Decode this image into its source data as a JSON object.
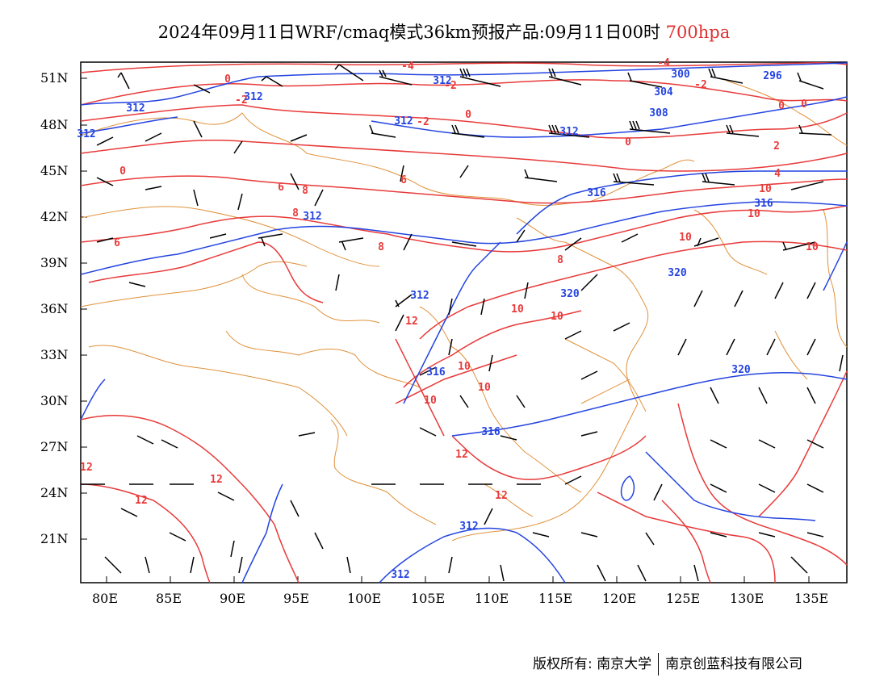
{
  "title": {
    "main": "2024年09月11日WRF/cmaq模式36km预报产品:09月11日00时",
    "level": "700hpa"
  },
  "axes": {
    "lat_labels": [
      "51N",
      "48N",
      "45N",
      "42N",
      "39N",
      "36N",
      "33N",
      "30N",
      "27N",
      "24N",
      "21N"
    ],
    "lon_labels": [
      "80E",
      "85E",
      "90E",
      "95E",
      "100E",
      "105E",
      "110E",
      "115E",
      "120E",
      "125E",
      "130E",
      "135E"
    ]
  },
  "colors": {
    "temperature": "#e83a3a",
    "geopotential": "#2444e0",
    "boundary": "#e0913a",
    "wind": "#000000"
  },
  "contour_labels": {
    "temperature": [
      "-4",
      "-4",
      "-2",
      "-2",
      "-2",
      "-2",
      "0",
      "0",
      "0",
      "0",
      "0",
      "0",
      "2",
      "4",
      "6",
      "6",
      "6",
      "8",
      "8",
      "8",
      "8",
      "10",
      "10",
      "10",
      "10",
      "10",
      "10",
      "10",
      "10",
      "10",
      "12",
      "12",
      "12",
      "12",
      "12",
      "12"
    ],
    "geopotential": [
      "296",
      "300",
      "304",
      "308",
      "312",
      "312",
      "312",
      "312",
      "312",
      "312",
      "312",
      "312",
      "312",
      "312",
      "316",
      "316",
      "316",
      "316",
      "320",
      "320",
      "320"
    ]
  },
  "footer": {
    "left": "版权所有: 南京大学",
    "right": "南京创蓝科技有限公司"
  }
}
